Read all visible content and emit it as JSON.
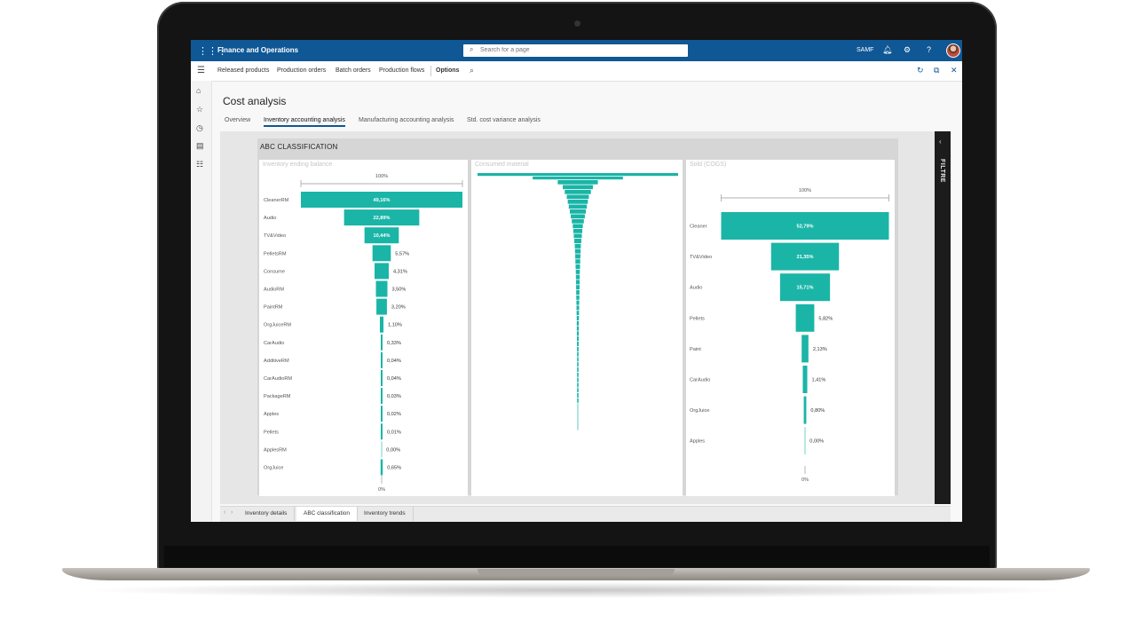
{
  "topbar": {
    "app_title": "Finance and Operations",
    "search_placeholder": "Search for a page",
    "company": "SAMF"
  },
  "actionbar": {
    "items": [
      "Released products",
      "Production orders",
      "Batch orders",
      "Production flows"
    ],
    "options_label": "Options"
  },
  "page": {
    "title": "Cost analysis",
    "tabs": [
      "Overview",
      "Inventory accounting analysis",
      "Manufacturing accounting analysis",
      "Std. cost variance analysis"
    ],
    "active_tab": 1
  },
  "report": {
    "section_title": "ABC CLASSIFICATION",
    "filter_label": "FILTRE",
    "page_tabs": [
      "Inventory details",
      "ABC classification",
      "Inventory trends"
    ],
    "active_page_tab": 1
  },
  "chart_data": [
    {
      "type": "funnel",
      "title": "Inventory ending balance",
      "top_label": "100%",
      "bottom_label": "0%",
      "categories": [
        "CleanerRM",
        "Audio",
        "TV&Video",
        "PelletsRM",
        "Consume",
        "AudioRM",
        "PaintRM",
        "OrgJuiceRM",
        "CarAudio",
        "AdditiveRM",
        "CarAudioRM",
        "PackageRM",
        "Apples",
        "Pellets",
        "ApplesRM",
        "OrgJuice"
      ],
      "values": [
        49.16,
        22.89,
        10.44,
        5.57,
        4.31,
        3.5,
        3.2,
        1.1,
        0.33,
        0.04,
        0.04,
        0.03,
        0.02,
        0.01,
        0.0,
        0.65
      ],
      "labels": [
        "49,16%",
        "22,89%",
        "10,44%",
        "5,57%",
        "4,31%",
        "3,50%",
        "3,20%",
        "1,10%",
        "0,33%",
        "0,04%",
        "0,04%",
        "0,03%",
        "0,02%",
        "0,01%",
        "0,00%",
        "0,65%"
      ],
      "color": "#1ab5a7"
    },
    {
      "type": "funnel",
      "title": "Consumed material",
      "values": [
        100,
        45,
        20,
        15,
        13,
        11,
        10,
        9,
        8,
        7,
        6,
        5,
        4.5,
        4,
        3.5,
        3,
        2.8,
        2.6,
        2.4,
        2.2,
        2,
        1.9,
        1.8,
        1.7,
        1.6,
        1.5,
        1.4,
        1.3,
        1.2,
        1.1,
        1.05,
        1,
        0.95,
        0.9,
        0.85,
        0.8,
        0.75,
        0.7,
        0.65,
        0.6,
        0.55,
        0.5,
        0.45,
        0.4,
        0.35,
        0.3
      ],
      "color": "#1ab5a7"
    },
    {
      "type": "funnel",
      "title": "Sold (COGS)",
      "top_label": "100%",
      "bottom_label": "0%",
      "categories": [
        "Cleaner",
        "TV&Video",
        "Audio",
        "Pellets",
        "Paint",
        "CarAudio",
        "OrgJuice",
        "Apples"
      ],
      "values": [
        52.79,
        21.35,
        15.71,
        5.82,
        2.13,
        1.41,
        0.8,
        0.0
      ],
      "labels": [
        "52,79%",
        "21,35%",
        "15,71%",
        "5,82%",
        "2,13%",
        "1,41%",
        "0,80%",
        "0,00%"
      ],
      "color": "#1ab5a7"
    }
  ]
}
